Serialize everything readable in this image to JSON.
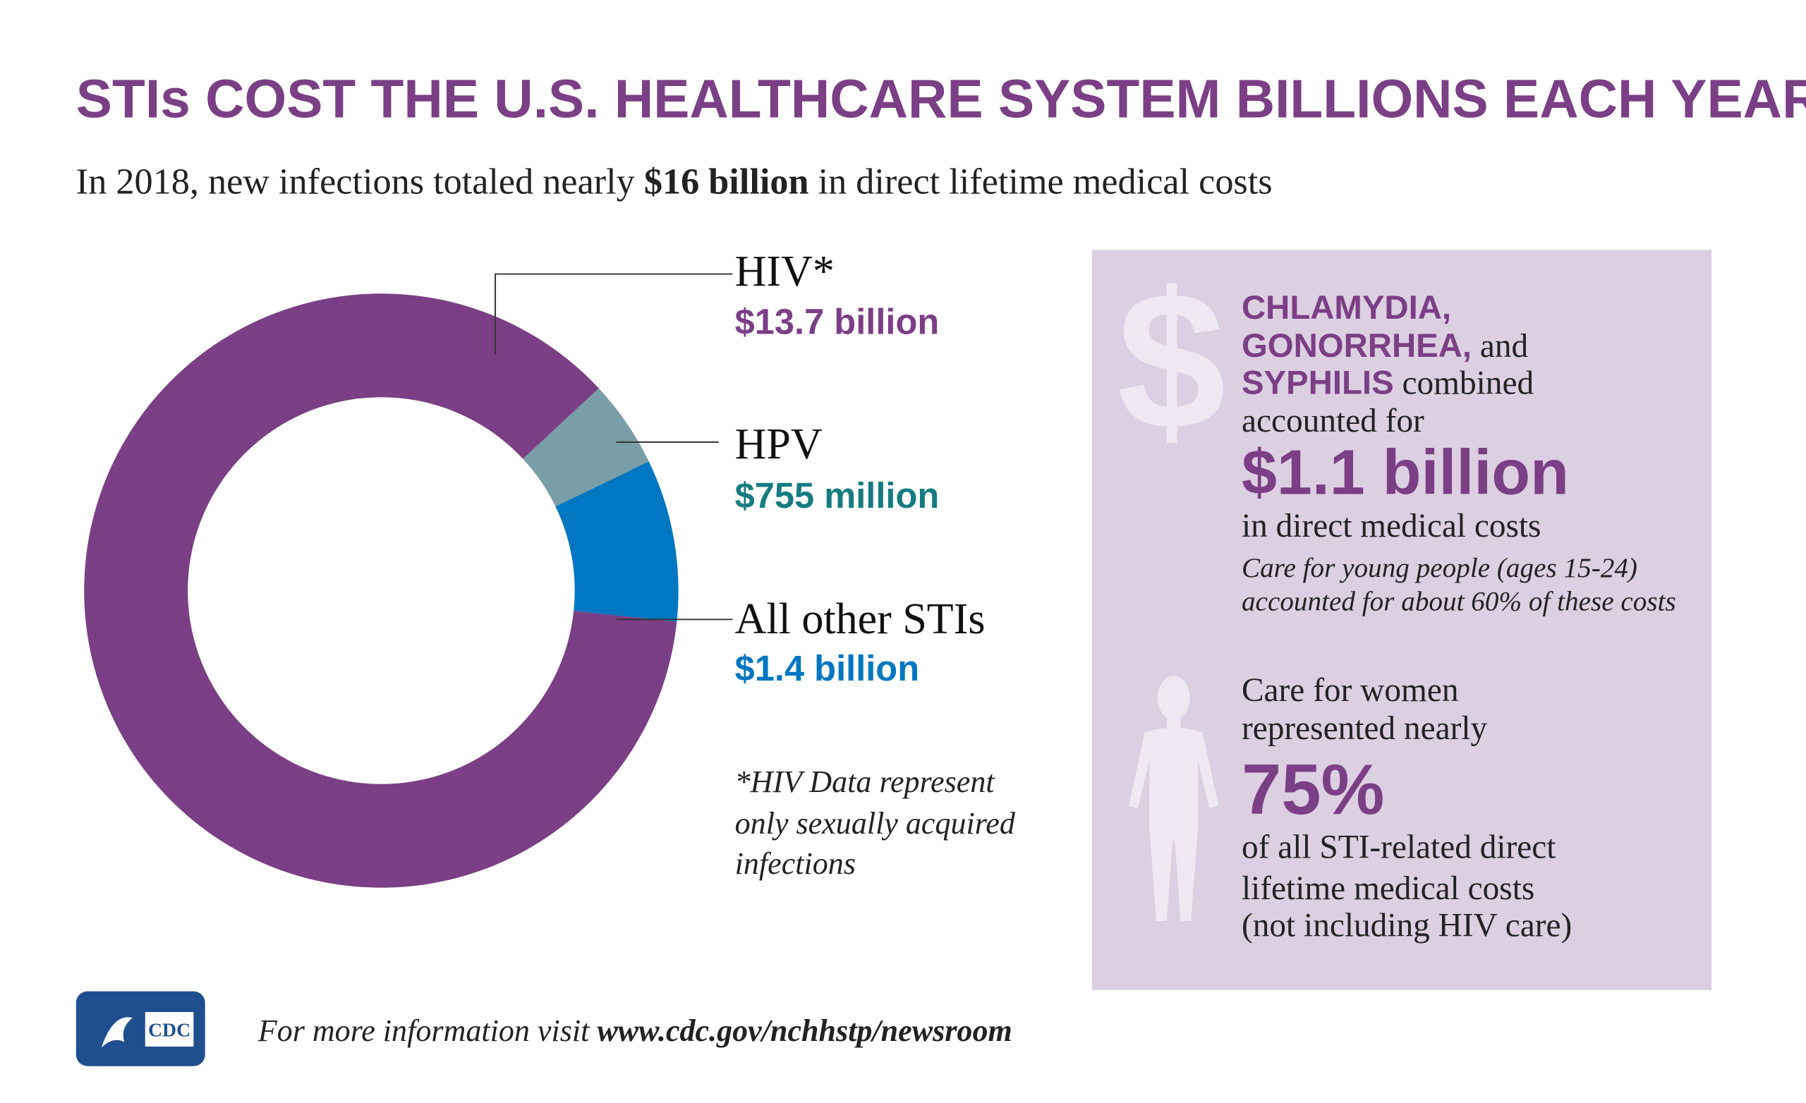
{
  "chart_data": {
    "type": "pie",
    "donut": true,
    "title": "STIs COST THE U.S. HEALTHCARE SYSTEM BILLIONS EACH YEAR",
    "subtitle_parts": [
      "In 2018, new infections totaled nearly ",
      "$16 billion",
      " in direct lifetime medical costs"
    ],
    "categories": [
      "HIV*",
      "HPV",
      "All other STIs"
    ],
    "values": [
      13.7,
      0.755,
      1.4
    ],
    "value_labels": [
      "$13.7 billion",
      "$755 million",
      "$1.4 billion"
    ],
    "colors": [
      "#7b3f85",
      "#7a9ea8",
      "#0077c0"
    ],
    "label_colors": [
      "#7b3f85",
      "#167b80",
      "#0077c0"
    ],
    "footnote": [
      "*HIV Data represent",
      "only sexually acquired",
      "infections"
    ]
  },
  "panel": {
    "diseases": [
      "CHLAMYDIA,",
      "GONORRHEA,",
      " and",
      "SYPHILIS",
      " combined"
    ],
    "line4": "accounted for",
    "amount": "$1.1 billion",
    "line5": "in direct medical costs",
    "note": [
      "Care for young people (ages 15-24)",
      "accounted for about 60% of these costs"
    ],
    "women": [
      "Care for women",
      "represented nearly"
    ],
    "share": "75%",
    "women_tail": [
      "of all STI-related direct",
      "lifetime medical costs",
      "(not including HIV care)"
    ]
  },
  "footer": {
    "logo": "CDC",
    "prefix": "For more information visit ",
    "url": "www.cdc.gov/nchhstp/newsroom"
  }
}
